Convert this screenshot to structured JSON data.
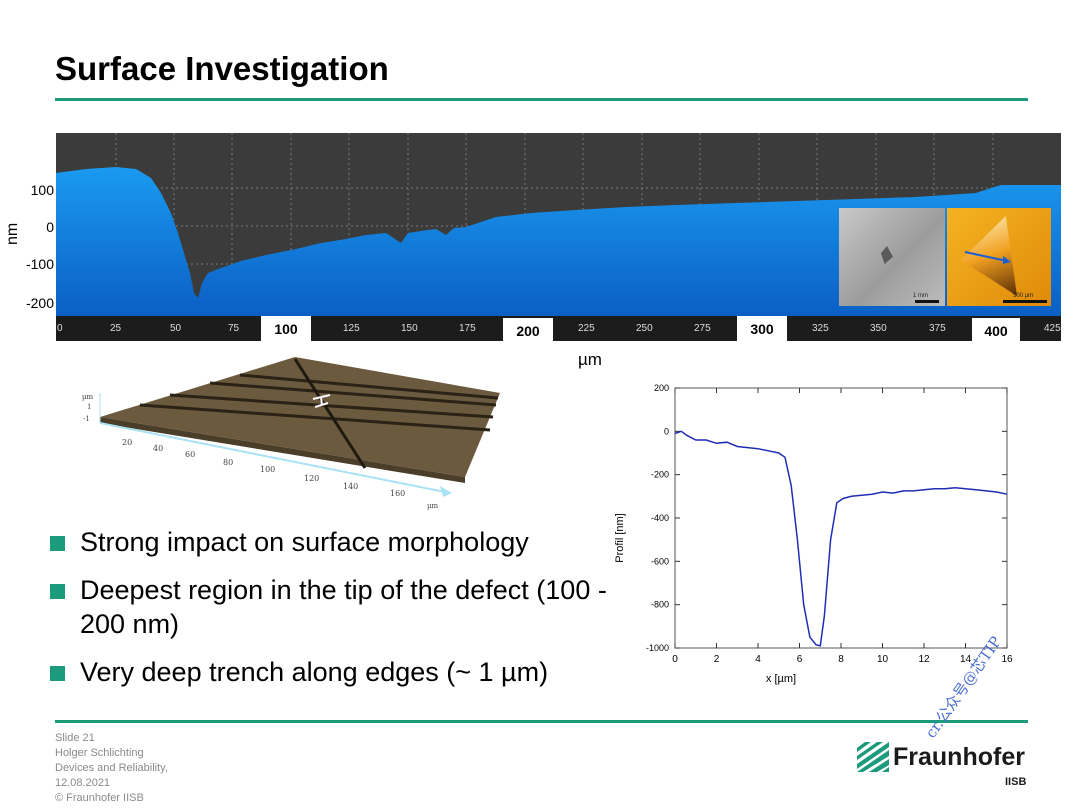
{
  "slide": {
    "title": "Surface Investigation",
    "accent_color": "#1b9a7c"
  },
  "profile_panel": {
    "y_unit": "nm",
    "y_ticks": [
      "100",
      "0",
      "-100",
      "-200"
    ],
    "x_unit": "µm",
    "x_ticks_small": [
      "0",
      "25",
      "50",
      "75",
      "125",
      "150",
      "175",
      "225",
      "250",
      "275",
      "325",
      "350",
      "375",
      "425"
    ],
    "x_ticks_boxed": [
      "100",
      "200",
      "300",
      "400"
    ],
    "inset_sem_scale": "1 mm",
    "inset_afm_scale": "500 µm"
  },
  "surface_3d": {
    "z_unit": "µm",
    "z_ticks": [
      "1",
      "-1"
    ],
    "x_ticks": [
      "20",
      "40",
      "60",
      "80",
      "100",
      "120",
      "140",
      "160"
    ],
    "x_unit": "µm"
  },
  "chart_data": {
    "type": "line",
    "xlabel": "x [µm]",
    "ylabel": "Profil [nm]",
    "xlim": [
      0,
      16
    ],
    "ylim": [
      -1000,
      200
    ],
    "x_ticks": [
      "0",
      "2",
      "4",
      "6",
      "8",
      "10",
      "12",
      "14",
      "16"
    ],
    "y_ticks": [
      "200",
      "0",
      "-200",
      "-400",
      "-600",
      "-800",
      "-1000"
    ],
    "series": [
      {
        "color": "#1f2db5",
        "x": [
          0,
          0.3,
          0.6,
          1.0,
          1.5,
          2.0,
          2.5,
          3.0,
          3.5,
          4.0,
          4.5,
          5.0,
          5.3,
          5.6,
          5.9,
          6.2,
          6.5,
          6.8,
          7.0,
          7.2,
          7.5,
          7.8,
          8.1,
          8.5,
          9.0,
          9.5,
          10.0,
          10.5,
          11.0,
          11.5,
          12.0,
          12.5,
          13.0,
          13.5,
          14.0,
          14.5,
          15.0,
          15.5,
          16.0
        ],
        "y": [
          -10,
          0,
          -20,
          -40,
          -40,
          -55,
          -50,
          -70,
          -75,
          -80,
          -90,
          -100,
          -120,
          -250,
          -500,
          -800,
          -950,
          -985,
          -990,
          -850,
          -500,
          -330,
          -310,
          -300,
          -295,
          -290,
          -280,
          -285,
          -275,
          -275,
          -270,
          -265,
          -265,
          -260,
          -265,
          -270,
          -275,
          -280,
          -290
        ]
      }
    ]
  },
  "bullets": [
    "Strong impact on surface morphology",
    "Deepest region in the tip of the defect (100 - 200 nm)",
    "Very deep trench along edges (~ 1 µm)"
  ],
  "footer": {
    "slide_no": "Slide 21",
    "author": "Holger Schlichting",
    "department": "Devices and Reliability,",
    "date": "12.08.2021",
    "copyright": "© Fraunhofer IISB"
  },
  "logo": {
    "name": "Fraunhofer",
    "sub": "IISB"
  },
  "watermark": "cr.公众号@芯TIP"
}
